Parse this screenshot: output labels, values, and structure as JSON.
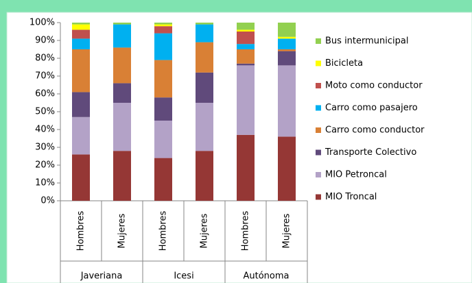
{
  "chart_data": {
    "type": "stacked_bar",
    "categories": [
      "Hombres",
      "Mujeres",
      "Hombres",
      "Mujeres",
      "Hombres",
      "Mujeres"
    ],
    "groups": [
      "Javeriana",
      "Icesi",
      "Autónoma"
    ],
    "ylim": [
      0,
      100
    ],
    "yticks": [
      {
        "value": 0,
        "label": "0%"
      },
      {
        "value": 10,
        "label": "10%"
      },
      {
        "value": 20,
        "label": "20%"
      },
      {
        "value": 30,
        "label": "30%"
      },
      {
        "value": 40,
        "label": "40%"
      },
      {
        "value": 50,
        "label": "50%"
      },
      {
        "value": 60,
        "label": "60%"
      },
      {
        "value": 70,
        "label": "70%"
      },
      {
        "value": 80,
        "label": "80%"
      },
      {
        "value": 90,
        "label": "90%"
      },
      {
        "value": 100,
        "label": "100%"
      }
    ],
    "series": [
      {
        "name": "MIO Troncal",
        "color": "#953735",
        "values": [
          26,
          28,
          24,
          28,
          37,
          36
        ]
      },
      {
        "name": "MIO Petroncal",
        "color": "#b3a2c7",
        "values": [
          21,
          27,
          21,
          27,
          39,
          40
        ]
      },
      {
        "name": "Transporte Colectivo",
        "color": "#604a7b",
        "values": [
          14,
          11,
          13,
          17,
          1,
          8
        ]
      },
      {
        "name": "Carro como conductor",
        "color": "#d98035",
        "values": [
          24,
          20,
          21,
          17,
          8,
          1
        ]
      },
      {
        "name": "Carro como pasajero",
        "color": "#00b0f0",
        "values": [
          6,
          13,
          15,
          10,
          3,
          6
        ]
      },
      {
        "name": "Moto como conductor",
        "color": "#c0504d",
        "values": [
          5,
          0,
          4,
          0,
          7,
          0
        ]
      },
      {
        "name": "Bicicleta",
        "color": "#ffff00",
        "values": [
          3,
          0,
          1,
          0,
          1,
          1
        ]
      },
      {
        "name": "Bus intermunicipal",
        "color": "#92d050",
        "values": [
          1,
          1,
          1,
          1,
          4,
          8
        ]
      }
    ]
  }
}
